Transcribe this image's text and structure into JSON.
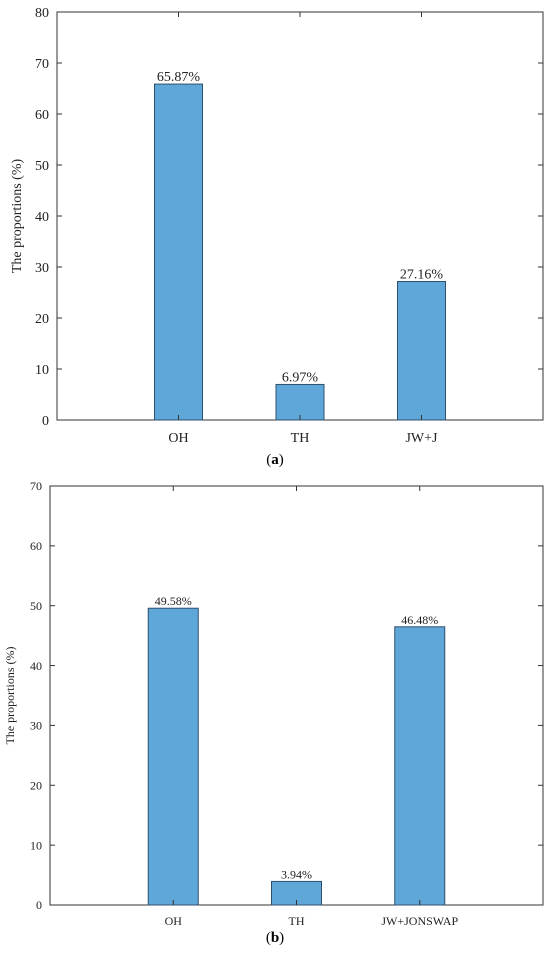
{
  "chart_data": [
    {
      "type": "bar",
      "panel_label": "a",
      "categories": [
        "OH",
        "TH",
        "JW+J"
      ],
      "values": [
        65.87,
        6.97,
        27.16
      ],
      "data_labels": [
        "65.87%",
        "6.97%",
        "27.16%"
      ],
      "ylabel": "The proportions (%)",
      "xlabel": "",
      "ylim": [
        0,
        80
      ],
      "yticks": [
        0,
        10,
        20,
        30,
        40,
        50,
        60,
        70,
        80
      ],
      "grid": false,
      "bar_color": "#5fa7d9"
    },
    {
      "type": "bar",
      "panel_label": "b",
      "categories": [
        "OH",
        "TH",
        "JW+JONSWAP"
      ],
      "values": [
        49.58,
        3.94,
        46.48
      ],
      "data_labels": [
        "49.58%",
        "3.94%",
        "46.48%"
      ],
      "ylabel": "The proportions (%)",
      "xlabel": "",
      "ylim": [
        0,
        70
      ],
      "yticks": [
        0,
        10,
        20,
        30,
        40,
        50,
        60,
        70
      ],
      "grid": false,
      "bar_color": "#5fa7d9"
    }
  ],
  "captions": [
    "a",
    "b"
  ]
}
